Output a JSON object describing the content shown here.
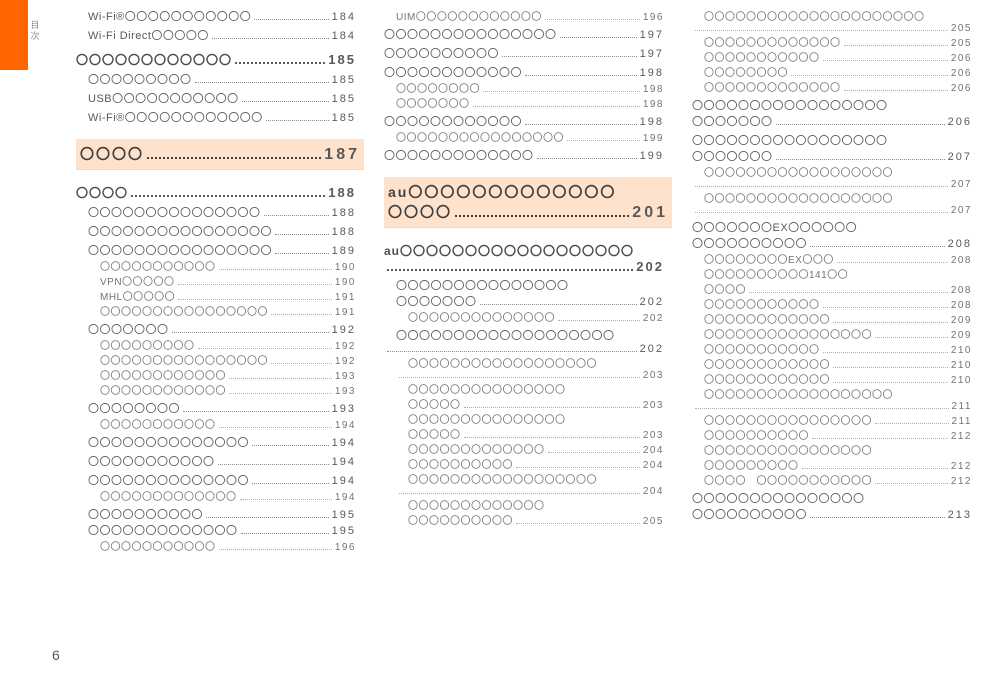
{
  "page_number": "6",
  "side_label": [
    "目",
    "次"
  ],
  "columns": [
    {
      "rows": [
        {
          "type": "row",
          "style": "",
          "indent": 1,
          "label": "Wi-Fi®〇〇〇〇〇〇〇〇〇〇〇",
          "page": "184"
        },
        {
          "type": "gap",
          "size": "sm"
        },
        {
          "type": "row",
          "style": "",
          "indent": 1,
          "label": "Wi-Fi Direct〇〇〇〇〇",
          "page": "184"
        },
        {
          "type": "gap",
          "size": "md"
        },
        {
          "type": "row",
          "style": "bold",
          "indent": 0,
          "label": "〇〇〇〇〇〇〇〇〇〇〇〇",
          "page": "185"
        },
        {
          "type": "gap",
          "size": "sm"
        },
        {
          "type": "row",
          "style": "",
          "indent": 1,
          "label": "〇〇〇〇〇〇〇〇〇",
          "page": "185"
        },
        {
          "type": "gap",
          "size": "sm"
        },
        {
          "type": "row",
          "style": "",
          "indent": 1,
          "label": "USB〇〇〇〇〇〇〇〇〇〇〇",
          "page": "185"
        },
        {
          "type": "gap",
          "size": "sm"
        },
        {
          "type": "row",
          "style": "",
          "indent": 1,
          "label": "Wi-Fi®〇〇〇〇〇〇〇〇〇〇〇〇",
          "page": "185"
        },
        {
          "type": "gap",
          "size": "lg"
        },
        {
          "type": "row",
          "style": "section hl",
          "indent": 0,
          "label": "〇〇〇〇",
          "page": "187"
        },
        {
          "type": "gap",
          "size": "lg"
        },
        {
          "type": "row",
          "style": "bold",
          "indent": 0,
          "label": "〇〇〇〇",
          "page": "188"
        },
        {
          "type": "gap",
          "size": "sm"
        },
        {
          "type": "row",
          "style": "",
          "indent": 1,
          "label": "〇〇〇〇〇〇〇〇〇〇〇〇〇〇〇",
          "page": "188"
        },
        {
          "type": "gap",
          "size": "sm"
        },
        {
          "type": "row",
          "style": "",
          "indent": 1,
          "label": "〇〇〇〇〇〇〇〇〇〇〇〇〇〇〇〇",
          "page": "188"
        },
        {
          "type": "gap",
          "size": "sm"
        },
        {
          "type": "row",
          "style": "",
          "indent": 1,
          "label": "〇〇〇〇〇〇〇〇〇〇〇〇〇〇〇〇",
          "page": "189"
        },
        {
          "type": "row",
          "style": "sub",
          "indent": 2,
          "label": "〇〇〇〇〇〇〇〇〇〇〇",
          "page": "190"
        },
        {
          "type": "row",
          "style": "sub",
          "indent": 2,
          "label": "VPN〇〇〇〇〇",
          "page": "190"
        },
        {
          "type": "row",
          "style": "sub",
          "indent": 2,
          "label": "MHL〇〇〇〇〇",
          "page": "191"
        },
        {
          "type": "row",
          "style": "sub",
          "indent": 2,
          "label": "〇〇〇〇〇〇〇〇〇〇〇〇〇〇〇〇",
          "page": "191"
        },
        {
          "type": "gap",
          "size": "sm"
        },
        {
          "type": "row",
          "style": "",
          "indent": 1,
          "label": "〇〇〇〇〇〇〇",
          "page": "192"
        },
        {
          "type": "row",
          "style": "sub",
          "indent": 2,
          "label": "〇〇〇〇〇〇〇〇〇",
          "page": "192"
        },
        {
          "type": "row",
          "style": "sub",
          "indent": 2,
          "label": "〇〇〇〇〇〇〇〇〇〇〇〇〇〇〇〇",
          "page": "192"
        },
        {
          "type": "row",
          "style": "sub",
          "indent": 2,
          "label": "〇〇〇〇〇〇〇〇〇〇〇〇",
          "page": "193"
        },
        {
          "type": "row",
          "style": "sub",
          "indent": 2,
          "label": "〇〇〇〇〇〇〇〇〇〇〇〇",
          "page": "193"
        },
        {
          "type": "gap",
          "size": "sm"
        },
        {
          "type": "row",
          "style": "",
          "indent": 1,
          "label": "〇〇〇〇〇〇〇〇",
          "page": "193"
        },
        {
          "type": "row",
          "style": "sub",
          "indent": 2,
          "label": "〇〇〇〇〇〇〇〇〇〇〇",
          "page": "194"
        },
        {
          "type": "gap",
          "size": "sm"
        },
        {
          "type": "row",
          "style": "",
          "indent": 1,
          "label": "〇〇〇〇〇〇〇〇〇〇〇〇〇〇",
          "page": "194"
        },
        {
          "type": "gap",
          "size": "sm"
        },
        {
          "type": "row",
          "style": "",
          "indent": 1,
          "label": "〇〇〇〇〇〇〇〇〇〇〇",
          "page": "194"
        },
        {
          "type": "gap",
          "size": "sm"
        },
        {
          "type": "row",
          "style": "",
          "indent": 1,
          "label": "〇〇〇〇〇〇〇〇〇〇〇〇〇〇",
          "page": "194"
        },
        {
          "type": "row",
          "style": "sub",
          "indent": 2,
          "label": "〇〇〇〇〇〇〇〇〇〇〇〇〇",
          "page": "194"
        },
        {
          "type": "gap",
          "size": "sm"
        },
        {
          "type": "row",
          "style": "",
          "indent": 1,
          "label": "〇〇〇〇〇〇〇〇〇〇",
          "page": "195"
        },
        {
          "type": "row",
          "style": "",
          "indent": 1,
          "label": "〇〇〇〇〇〇〇〇〇〇〇〇〇",
          "page": "195"
        },
        {
          "type": "row",
          "style": "sub",
          "indent": 2,
          "label": "〇〇〇〇〇〇〇〇〇〇〇",
          "page": "196"
        }
      ]
    },
    {
      "rows": [
        {
          "type": "row",
          "style": "sub",
          "indent": 1,
          "label": "UIM〇〇〇〇〇〇〇〇〇〇〇〇",
          "page": "196"
        },
        {
          "type": "gap",
          "size": "sm"
        },
        {
          "type": "row",
          "style": "",
          "indent": 0,
          "label": "〇〇〇〇〇〇〇〇〇〇〇〇〇〇〇",
          "page": "197"
        },
        {
          "type": "gap",
          "size": "sm"
        },
        {
          "type": "row",
          "style": "",
          "indent": 0,
          "label": "〇〇〇〇〇〇〇〇〇〇",
          "page": "197"
        },
        {
          "type": "gap",
          "size": "sm"
        },
        {
          "type": "row",
          "style": "",
          "indent": 0,
          "label": "〇〇〇〇〇〇〇〇〇〇〇〇",
          "page": "198"
        },
        {
          "type": "row",
          "style": "sub",
          "indent": 1,
          "label": "〇〇〇〇〇〇〇〇",
          "page": "198"
        },
        {
          "type": "row",
          "style": "sub",
          "indent": 1,
          "label": "〇〇〇〇〇〇〇",
          "page": "198"
        },
        {
          "type": "gap",
          "size": "sm"
        },
        {
          "type": "row",
          "style": "",
          "indent": 0,
          "label": "〇〇〇〇〇〇〇〇〇〇〇〇",
          "page": "198"
        },
        {
          "type": "row",
          "style": "sub",
          "indent": 1,
          "label": "〇〇〇〇〇〇〇〇〇〇〇〇〇〇〇〇",
          "page": "199"
        },
        {
          "type": "gap",
          "size": "sm"
        },
        {
          "type": "row",
          "style": "",
          "indent": 0,
          "label": "〇〇〇〇〇〇〇〇〇〇〇〇〇",
          "page": "199"
        },
        {
          "type": "gap",
          "size": "lg"
        },
        {
          "type": "row",
          "style": "section hl2",
          "indent": 0,
          "label": "au〇〇〇〇〇〇〇〇〇〇〇〇〇",
          "page": ""
        },
        {
          "type": "row",
          "style": "section hl3",
          "indent": 0,
          "label": "〇〇〇〇",
          "page": "201"
        },
        {
          "type": "gap",
          "size": "lg"
        },
        {
          "type": "row",
          "style": "bold",
          "indent": 0,
          "label": "au〇〇〇〇〇〇〇〇〇〇〇〇〇〇〇〇〇〇",
          "page": ""
        },
        {
          "type": "row",
          "style": "bold",
          "indent": 0,
          "label": "",
          "page": "202"
        },
        {
          "type": "gap",
          "size": "sm"
        },
        {
          "type": "row",
          "style": "",
          "indent": 1,
          "label": "〇〇〇〇〇〇〇〇〇〇〇〇〇〇〇",
          "page": ""
        },
        {
          "type": "row",
          "style": "",
          "indent": 1,
          "label": "〇〇〇〇〇〇〇",
          "page": "202"
        },
        {
          "type": "row",
          "style": "sub",
          "indent": 2,
          "label": "〇〇〇〇〇〇〇〇〇〇〇〇〇〇",
          "page": "202"
        },
        {
          "type": "gap",
          "size": "sm"
        },
        {
          "type": "row",
          "style": "",
          "indent": 1,
          "label": "〇〇〇〇〇〇〇〇〇〇〇〇〇〇〇〇〇〇〇",
          "page": ""
        },
        {
          "type": "row",
          "style": "",
          "indent": 0,
          "label": "",
          "page": "202"
        },
        {
          "type": "row",
          "style": "sub",
          "indent": 2,
          "label": "〇〇〇〇〇〇〇〇〇〇〇〇〇〇〇〇〇〇",
          "page": ""
        },
        {
          "type": "row",
          "style": "sub",
          "indent": 1,
          "label": "",
          "page": "203"
        },
        {
          "type": "row",
          "style": "sub",
          "indent": 2,
          "label": "〇〇〇〇〇〇〇〇〇〇〇〇〇〇〇",
          "page": ""
        },
        {
          "type": "row",
          "style": "sub",
          "indent": 2,
          "label": "〇〇〇〇〇",
          "page": "203"
        },
        {
          "type": "row",
          "style": "sub",
          "indent": 2,
          "label": "〇〇〇〇〇〇〇〇〇〇〇〇〇〇〇",
          "page": ""
        },
        {
          "type": "row",
          "style": "sub",
          "indent": 2,
          "label": "〇〇〇〇〇",
          "page": "203"
        },
        {
          "type": "row",
          "style": "sub",
          "indent": 2,
          "label": "〇〇〇〇〇〇〇〇〇〇〇〇〇",
          "page": "204"
        },
        {
          "type": "row",
          "style": "sub",
          "indent": 2,
          "label": "〇〇〇〇〇〇〇〇〇〇",
          "page": "204"
        },
        {
          "type": "row",
          "style": "sub",
          "indent": 2,
          "label": "〇〇〇〇〇〇〇〇〇〇〇〇〇〇〇〇〇〇",
          "page": ""
        },
        {
          "type": "row",
          "style": "sub",
          "indent": 1,
          "label": "",
          "page": "204"
        },
        {
          "type": "row",
          "style": "sub",
          "indent": 2,
          "label": "〇〇〇〇〇〇〇〇〇〇〇〇〇",
          "page": ""
        },
        {
          "type": "row",
          "style": "sub",
          "indent": 2,
          "label": "〇〇〇〇〇〇〇〇〇〇",
          "page": "205"
        }
      ]
    },
    {
      "rows": [
        {
          "type": "row",
          "style": "sub",
          "indent": 1,
          "label": "〇〇〇〇〇〇〇〇〇〇〇〇〇〇〇〇〇〇〇〇〇",
          "page": ""
        },
        {
          "type": "row",
          "style": "sub",
          "indent": 0,
          "label": "",
          "page": "205"
        },
        {
          "type": "row",
          "style": "sub",
          "indent": 1,
          "label": "〇〇〇〇〇〇〇〇〇〇〇〇〇",
          "page": "205"
        },
        {
          "type": "row",
          "style": "sub",
          "indent": 1,
          "label": "〇〇〇〇〇〇〇〇〇〇〇",
          "page": "206"
        },
        {
          "type": "row",
          "style": "sub",
          "indent": 1,
          "label": "〇〇〇〇〇〇〇〇",
          "page": "206"
        },
        {
          "type": "row",
          "style": "sub",
          "indent": 1,
          "label": "〇〇〇〇〇〇〇〇〇〇〇〇〇",
          "page": "206"
        },
        {
          "type": "gap",
          "size": "sm"
        },
        {
          "type": "row",
          "style": "",
          "indent": 0,
          "label": "〇〇〇〇〇〇〇〇〇〇〇〇〇〇〇〇〇",
          "page": ""
        },
        {
          "type": "row",
          "style": "",
          "indent": 0,
          "label": "〇〇〇〇〇〇〇",
          "page": "206"
        },
        {
          "type": "gap",
          "size": "sm"
        },
        {
          "type": "row",
          "style": "",
          "indent": 0,
          "label": "〇〇〇〇〇〇〇〇〇〇〇〇〇〇〇〇〇",
          "page": ""
        },
        {
          "type": "row",
          "style": "",
          "indent": 0,
          "label": "〇〇〇〇〇〇〇",
          "page": "207"
        },
        {
          "type": "row",
          "style": "sub",
          "indent": 1,
          "label": "〇〇〇〇〇〇〇〇〇〇〇〇〇〇〇〇〇〇",
          "page": ""
        },
        {
          "type": "row",
          "style": "sub",
          "indent": 0,
          "label": "",
          "page": "207"
        },
        {
          "type": "row",
          "style": "sub",
          "indent": 1,
          "label": "〇〇〇〇〇〇〇〇〇〇〇〇〇〇〇〇〇〇",
          "page": ""
        },
        {
          "type": "row",
          "style": "sub",
          "indent": 0,
          "label": "",
          "page": "207"
        },
        {
          "type": "gap",
          "size": "sm"
        },
        {
          "type": "row",
          "style": "",
          "indent": 0,
          "label": "〇〇〇〇〇〇〇EX〇〇〇〇〇〇",
          "page": ""
        },
        {
          "type": "row",
          "style": "",
          "indent": 0,
          "label": "〇〇〇〇〇〇〇〇〇〇",
          "page": "208"
        },
        {
          "type": "row",
          "style": "sub",
          "indent": 1,
          "label": "〇〇〇〇〇〇〇〇EX〇〇〇",
          "page": "208"
        },
        {
          "type": "row",
          "style": "sub",
          "indent": 1,
          "label": "〇〇〇〇〇〇〇〇〇〇141〇〇",
          "page": ""
        },
        {
          "type": "row",
          "style": "sub",
          "indent": 1,
          "label": "〇〇〇〇",
          "page": "208"
        },
        {
          "type": "row",
          "style": "sub",
          "indent": 1,
          "label": "〇〇〇〇〇〇〇〇〇〇〇",
          "page": "208"
        },
        {
          "type": "row",
          "style": "sub",
          "indent": 1,
          "label": "〇〇〇〇〇〇〇〇〇〇〇〇",
          "page": "209"
        },
        {
          "type": "row",
          "style": "sub",
          "indent": 1,
          "label": "〇〇〇〇〇〇〇〇〇〇〇〇〇〇〇〇",
          "page": "209"
        },
        {
          "type": "row",
          "style": "sub",
          "indent": 1,
          "label": "〇〇〇〇〇〇〇〇〇〇〇",
          "page": "210"
        },
        {
          "type": "row",
          "style": "sub",
          "indent": 1,
          "label": "〇〇〇〇〇〇〇〇〇〇〇〇",
          "page": "210"
        },
        {
          "type": "row",
          "style": "sub",
          "indent": 1,
          "label": "〇〇〇〇〇〇〇〇〇〇〇〇",
          "page": "210"
        },
        {
          "type": "row",
          "style": "sub",
          "indent": 1,
          "label": "〇〇〇〇〇〇〇〇〇〇〇〇〇〇〇〇〇〇",
          "page": ""
        },
        {
          "type": "row",
          "style": "sub",
          "indent": 0,
          "label": "",
          "page": "211"
        },
        {
          "type": "row",
          "style": "sub",
          "indent": 1,
          "label": "〇〇〇〇〇〇〇〇〇〇〇〇〇〇〇〇",
          "page": "211"
        },
        {
          "type": "row",
          "style": "sub",
          "indent": 1,
          "label": "〇〇〇〇〇〇〇〇〇〇",
          "page": "212"
        },
        {
          "type": "row",
          "style": "sub",
          "indent": 1,
          "label": "〇〇〇〇〇〇〇〇〇〇〇〇〇〇〇〇",
          "page": ""
        },
        {
          "type": "row",
          "style": "sub",
          "indent": 1,
          "label": "〇〇〇〇〇〇〇〇〇",
          "page": "212"
        },
        {
          "type": "row",
          "style": "sub",
          "indent": 1,
          "label": "〇〇〇〇　〇〇〇〇〇〇〇〇〇〇〇",
          "page": "212"
        },
        {
          "type": "gap",
          "size": "sm"
        },
        {
          "type": "row",
          "style": "",
          "indent": 0,
          "label": "〇〇〇〇〇〇〇〇〇〇〇〇〇〇〇",
          "page": ""
        },
        {
          "type": "row",
          "style": "",
          "indent": 0,
          "label": "〇〇〇〇〇〇〇〇〇〇",
          "page": "213"
        }
      ]
    }
  ]
}
